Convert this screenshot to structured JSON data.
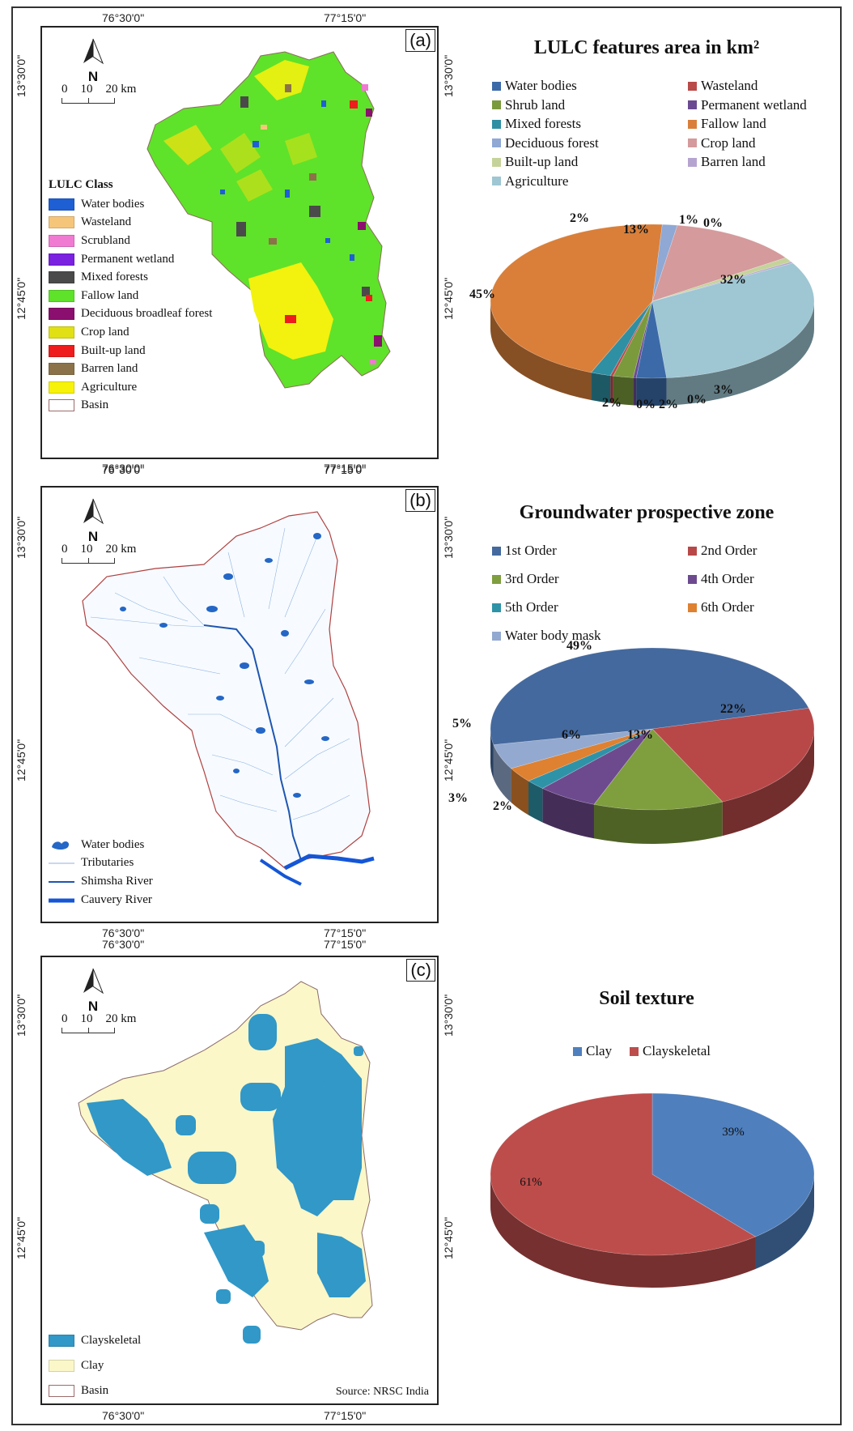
{
  "coords": {
    "top_left_lon": "76°30'0\"",
    "top_right_lon": "77°15'0\"",
    "bottom_left_lon": "76°30'0\"",
    "bottom_right_lon": "77°15'0\"",
    "lat_top": "13°30'0\"",
    "lat_bottom": "12°45'0\""
  },
  "north_label": "N",
  "scale": {
    "t0": "0",
    "t1": "10",
    "t2": "20 km"
  },
  "colors": {
    "panel_a_map": {
      "fallow": "#5fe22a",
      "agri": "#f2f20e",
      "mixed": "#4a4a4a",
      "water": "#1e5fd4",
      "builtup": "#ee1c1c",
      "barren": "#8c7248",
      "deciduous": "#8b0f6e",
      "waste": "#f5c67a",
      "scrub": "#f07ad2"
    },
    "panel_b_map": {
      "river": "#2467c6",
      "shimsha": "#1f56b0",
      "cauvery": "#1556d6",
      "boundary": "#b04040"
    },
    "panel_c_map": {
      "clayskeletal": "#3198c8",
      "clay": "#fbf7c8"
    }
  },
  "panel_a": {
    "letter": "(a)",
    "legend_title": "LULC Class",
    "legend": [
      {
        "label": "Water bodies",
        "color": "#1e5fd4"
      },
      {
        "label": "Wasteland",
        "color": "#f5c67a"
      },
      {
        "label": "Scrubland",
        "color": "#f07ad2"
      },
      {
        "label": "Permanent wetland",
        "color": "#7a22e0"
      },
      {
        "label": "Mixed forests",
        "color": "#4a4a4a"
      },
      {
        "label": "Fallow land",
        "color": "#5fe22a"
      },
      {
        "label": "Deciduous broadleaf forest",
        "color": "#8b0f6e"
      },
      {
        "label": "Crop land",
        "color": "#e0e014"
      },
      {
        "label": "Built-up land",
        "color": "#ee1c1c"
      },
      {
        "label": "Barren land",
        "color": "#8c7248"
      },
      {
        "label": "Agriculture",
        "color": "#f7f20a"
      },
      {
        "label": "Basin",
        "color": "#ffffff"
      }
    ]
  },
  "panel_b": {
    "letter": "(b)",
    "legend": [
      {
        "label": "Water bodies"
      },
      {
        "label": "Tributaries"
      },
      {
        "label": "Shimsha River"
      },
      {
        "label": "Cauvery River"
      }
    ]
  },
  "panel_c": {
    "letter": "(c)",
    "legend": [
      {
        "label": "Clayskeletal",
        "color": "#3198c8"
      },
      {
        "label": "Clay",
        "color": "#fbf7c8"
      },
      {
        "label": "Basin",
        "color": "#ffffff"
      }
    ],
    "source": "Source: NRSC India"
  },
  "chart_data": [
    {
      "type": "pie",
      "title": "LULC features area in km²",
      "legend": [
        "Water bodies",
        "Wasteland",
        "Shrub land",
        "Permanent wetland",
        "Mixed forests",
        "Fallow land",
        "Deciduous forest",
        "Crop land",
        "Built-up land",
        "Barren land",
        "Agriculture"
      ],
      "slices": [
        {
          "name": "Agriculture",
          "value": 32,
          "label": "32%",
          "color": "#9ec6d3"
        },
        {
          "name": "Water bodies",
          "value": 3,
          "label": "3%",
          "color": "#3c6aa8"
        },
        {
          "name": "Permanent wetland",
          "value": 0.3,
          "label": "0%",
          "color": "#6b4a92"
        },
        {
          "name": "Shrub land",
          "value": 2,
          "label": "2%",
          "color": "#7a9a3c"
        },
        {
          "name": "Wasteland",
          "value": 0.3,
          "label": "0%",
          "color": "#b94a48"
        },
        {
          "name": "Mixed forests",
          "value": 2,
          "label": "2%",
          "color": "#2f8fa3"
        },
        {
          "name": "Fallow land",
          "value": 45,
          "label": "45%",
          "color": "#d97f3a"
        },
        {
          "name": "Deciduous forest",
          "value": 1.5,
          "label": "2%",
          "color": "#8fa8d4"
        },
        {
          "name": "Crop land",
          "value": 13,
          "label": "13%",
          "color": "#d49a9c"
        },
        {
          "name": "Built-up land",
          "value": 1,
          "label": "1%",
          "color": "#c5d39a"
        },
        {
          "name": "Barren land",
          "value": 0.3,
          "label": "0%",
          "color": "#b6a4d0"
        }
      ]
    },
    {
      "type": "pie",
      "title": "Groundwater prospective zone",
      "legend": [
        "1st Order",
        "2nd Order",
        "3rd Order",
        "4th Order",
        "5th Order",
        "6th Order",
        "Water body mask"
      ],
      "slices": [
        {
          "name": "2nd Order",
          "value": 22,
          "label": "22%",
          "color": "#b84848"
        },
        {
          "name": "3rd Order",
          "value": 13,
          "label": "13%",
          "color": "#7f9e3e"
        },
        {
          "name": "4th Order",
          "value": 6,
          "label": "6%",
          "color": "#6d4a8e"
        },
        {
          "name": "5th Order",
          "value": 2,
          "label": "2%",
          "color": "#2f93a8"
        },
        {
          "name": "6th Order",
          "value": 3,
          "label": "3%",
          "color": "#de8131"
        },
        {
          "name": "Water body mask",
          "value": 5,
          "label": "5%",
          "color": "#93a9cf"
        },
        {
          "name": "1st Order",
          "value": 49,
          "label": "49%",
          "color": "#44699e"
        }
      ]
    },
    {
      "type": "pie",
      "title": "Soil texture",
      "legend": [
        "Clay",
        "Clayskeletal"
      ],
      "slices": [
        {
          "name": "Clay",
          "value": 39,
          "label": "39%",
          "color": "#4f7fbd"
        },
        {
          "name": "Clayskeletal",
          "value": 61,
          "label": "61%",
          "color": "#bd4d4b"
        }
      ]
    }
  ]
}
